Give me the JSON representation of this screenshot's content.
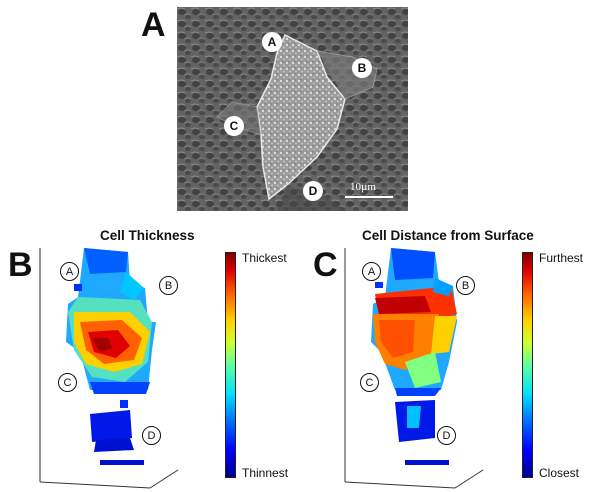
{
  "panels": {
    "a": {
      "letter": "A",
      "markers": [
        "A",
        "B",
        "C",
        "D"
      ],
      "scale_label": "10µm"
    },
    "b": {
      "letter": "B",
      "title": "Cell Thickness",
      "colorbar_top": "Thickest",
      "colorbar_bottom": "Thinnest",
      "markers": [
        "A",
        "B",
        "C",
        "D"
      ]
    },
    "c": {
      "letter": "C",
      "title": "Cell Distance from Surface",
      "colorbar_top": "Furthest",
      "colorbar_bottom": "Closest",
      "markers": [
        "A",
        "B",
        "C",
        "D"
      ]
    }
  },
  "colors": {
    "sem_background": "#5e5e5e",
    "colormap": "jet"
  }
}
